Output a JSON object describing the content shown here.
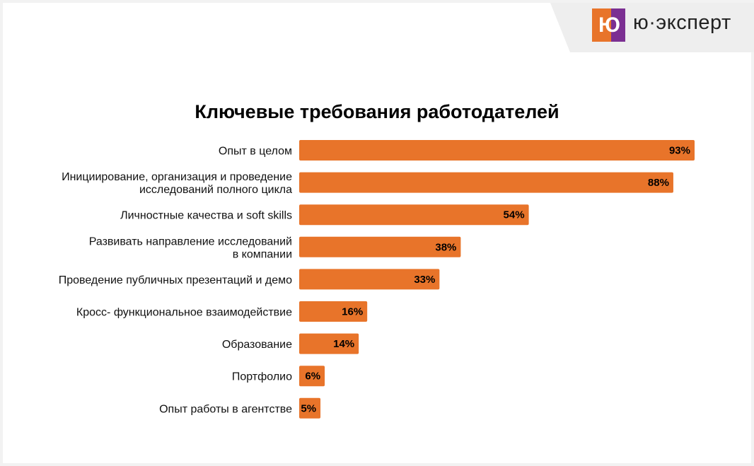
{
  "brand": {
    "logo_glyph": "Ю",
    "name": "ю·эксперт",
    "accent": "#e8742a",
    "secondary": "#7b2f92"
  },
  "chart_data": {
    "type": "bar",
    "orientation": "horizontal",
    "title": "Ключевые требования работодателей",
    "categories": [
      [
        "Опыт в целом"
      ],
      [
        "Инициирование, организация и проведение",
        "исследований полного цикла"
      ],
      [
        "Личностные качества и soft skills"
      ],
      [
        "Развивать направление исследований",
        "в компании"
      ],
      [
        "Проведение публичных презентаций и демо"
      ],
      [
        "Кросс- функциональное взаимодействие"
      ],
      [
        "Образование"
      ],
      [
        "Портфолио"
      ],
      [
        "Опыт работы в агентстве"
      ]
    ],
    "values": [
      93,
      88,
      54,
      38,
      33,
      16,
      14,
      6,
      5
    ],
    "value_labels": [
      "93%",
      "88%",
      "54%",
      "38%",
      "33%",
      "16%",
      "14%",
      "6%",
      "5%"
    ],
    "bar_color": "#e8742a",
    "xlim": [
      0,
      100
    ],
    "grid": false,
    "legend": "none"
  }
}
